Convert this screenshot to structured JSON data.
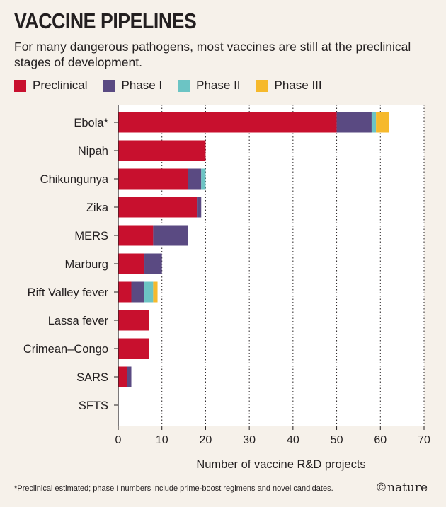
{
  "header": {
    "title": "VACCINE PIPELINES",
    "subtitle": "For many dangerous pathogens, most vaccines are still at the preclinical stages of development."
  },
  "legend": [
    {
      "label": "Preclinical",
      "color": "#c8102e"
    },
    {
      "label": "Phase I",
      "color": "#5a4a82"
    },
    {
      "label": "Phase II",
      "color": "#6cc4c4"
    },
    {
      "label": "Phase III",
      "color": "#f6b92c"
    }
  ],
  "footer": {
    "footnote": "*Preclinical estimated; phase I numbers include prime-boost regimens and novel candidates.",
    "logo": "©nature"
  },
  "chart_data": {
    "type": "bar",
    "orientation": "horizontal",
    "stacked": true,
    "categories": [
      "Ebola*",
      "Nipah",
      "Chikungunya",
      "Zika",
      "MERS",
      "Marburg",
      "Rift Valley fever",
      "Lassa fever",
      "Crimean–Congo",
      "SARS",
      "SFTS"
    ],
    "series": [
      {
        "name": "Preclinical",
        "color": "#c8102e",
        "values": [
          50,
          20,
          16,
          18,
          8,
          6,
          3,
          7,
          7,
          2,
          0
        ]
      },
      {
        "name": "Phase I",
        "color": "#5a4a82",
        "values": [
          8,
          0,
          3,
          1,
          8,
          4,
          3,
          0,
          0,
          1,
          0
        ]
      },
      {
        "name": "Phase II",
        "color": "#6cc4c4",
        "values": [
          1,
          0,
          1,
          0,
          0,
          0,
          2,
          0,
          0,
          0,
          0
        ]
      },
      {
        "name": "Phase III",
        "color": "#f6b92c",
        "values": [
          3,
          0,
          0,
          0,
          0,
          0,
          1,
          0,
          0,
          0,
          0
        ]
      }
    ],
    "xlabel": "Number of vaccine R&D projects",
    "xlim": [
      0,
      70
    ],
    "xticks": [
      0,
      10,
      20,
      30,
      40,
      50,
      60,
      70
    ],
    "grid": "vertical dotted",
    "legend_position": "top"
  }
}
